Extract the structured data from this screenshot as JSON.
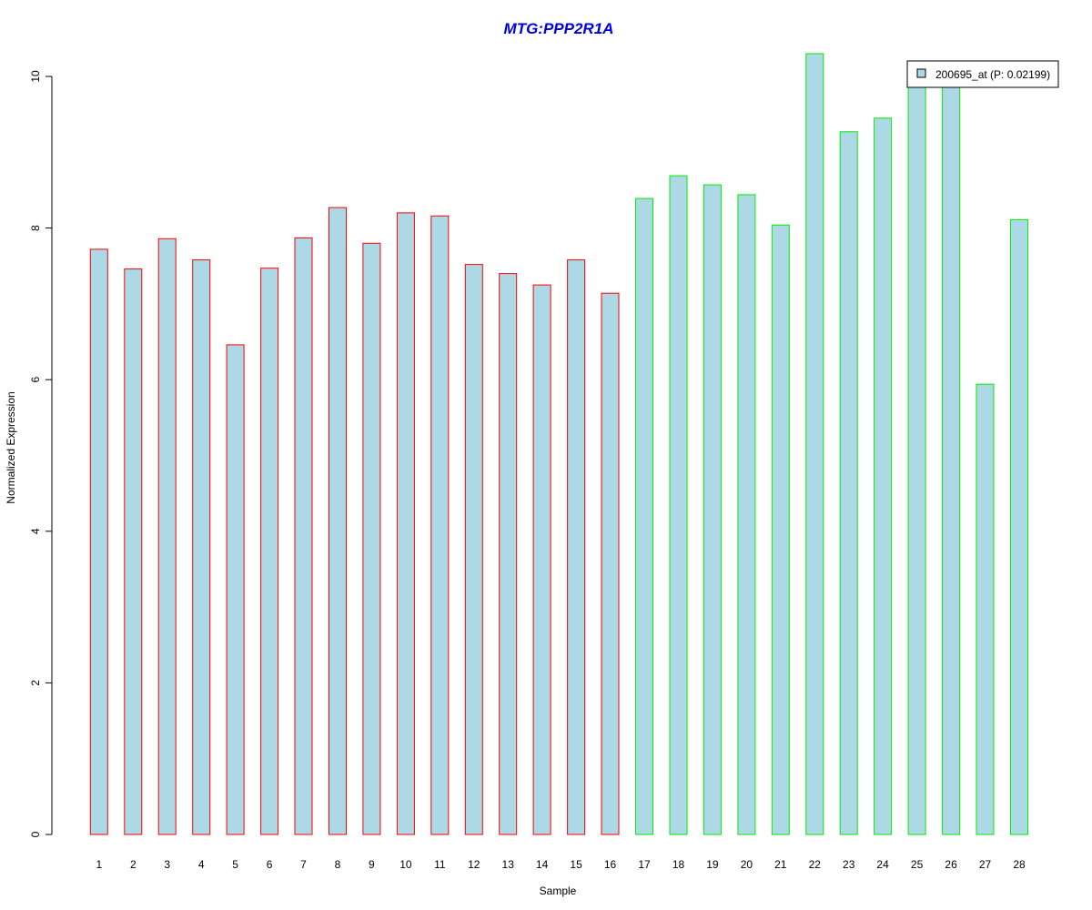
{
  "colors": {
    "title": "#0000dd",
    "bar_fill": "#add8e6",
    "group1_border": "#ff0000",
    "group2_border": "#00ee00",
    "axis": "#000000"
  },
  "chart_data": {
    "type": "bar",
    "title": "MTG:PPP2R1A",
    "xlabel": "Sample",
    "ylabel": "Normalized Expression",
    "ylim": [
      0,
      10.3
    ],
    "yticks": [
      0,
      2,
      4,
      6,
      8,
      10
    ],
    "grid": false,
    "legend": {
      "placement": "top-right",
      "entries": [
        {
          "label": "200695_at (P: 0.02199)",
          "color": "#add8e6"
        }
      ]
    },
    "categories": [
      "1",
      "2",
      "3",
      "4",
      "5",
      "6",
      "7",
      "8",
      "9",
      "10",
      "11",
      "12",
      "13",
      "14",
      "15",
      "16",
      "17",
      "18",
      "19",
      "20",
      "21",
      "22",
      "23",
      "24",
      "25",
      "26",
      "27",
      "28"
    ],
    "series": [
      {
        "name": "200695_at (P: 0.02199)",
        "values": [
          7.72,
          7.46,
          7.86,
          7.58,
          6.46,
          7.47,
          7.87,
          8.27,
          7.8,
          8.2,
          8.16,
          7.52,
          7.4,
          7.25,
          7.58,
          7.14,
          8.39,
          8.69,
          8.57,
          8.44,
          8.04,
          10.3,
          9.27,
          9.45,
          9.95,
          9.9,
          5.94,
          8.11
        ],
        "group": [
          1,
          1,
          1,
          1,
          1,
          1,
          1,
          1,
          1,
          1,
          1,
          1,
          1,
          1,
          1,
          1,
          2,
          2,
          2,
          2,
          2,
          2,
          2,
          2,
          2,
          2,
          2,
          2
        ]
      }
    ]
  }
}
